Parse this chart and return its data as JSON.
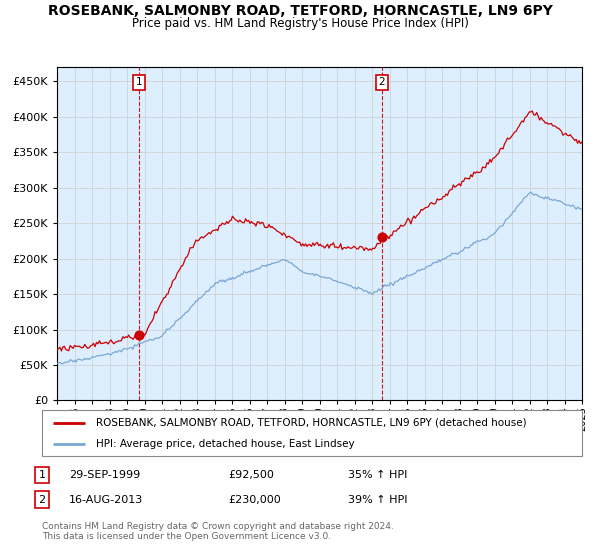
{
  "title": "ROSEBANK, SALMONBY ROAD, TETFORD, HORNCASTLE, LN9 6PY",
  "subtitle": "Price paid vs. HM Land Registry's House Price Index (HPI)",
  "legend_line1": "ROSEBANK, SALMONBY ROAD, TETFORD, HORNCASTLE, LN9 6PY (detached house)",
  "legend_line2": "HPI: Average price, detached house, East Lindsey",
  "footnote1": "Contains HM Land Registry data © Crown copyright and database right 2024.",
  "footnote2": "This data is licensed under the Open Government Licence v3.0.",
  "sale1_date": "29-SEP-1999",
  "sale1_price": "£92,500",
  "sale1_hpi": "35% ↑ HPI",
  "sale2_date": "16-AUG-2013",
  "sale2_price": "£230,000",
  "sale2_hpi": "39% ↑ HPI",
  "red_color": "#cc0000",
  "blue_color": "#7aa8d4",
  "bg_color": "#ddeeff",
  "grid_color": "#cccccc",
  "ylim": [
    0,
    470000
  ],
  "yticks": [
    0,
    50000,
    100000,
    150000,
    200000,
    250000,
    300000,
    350000,
    400000,
    450000
  ],
  "start_year": 1995,
  "end_year": 2025
}
